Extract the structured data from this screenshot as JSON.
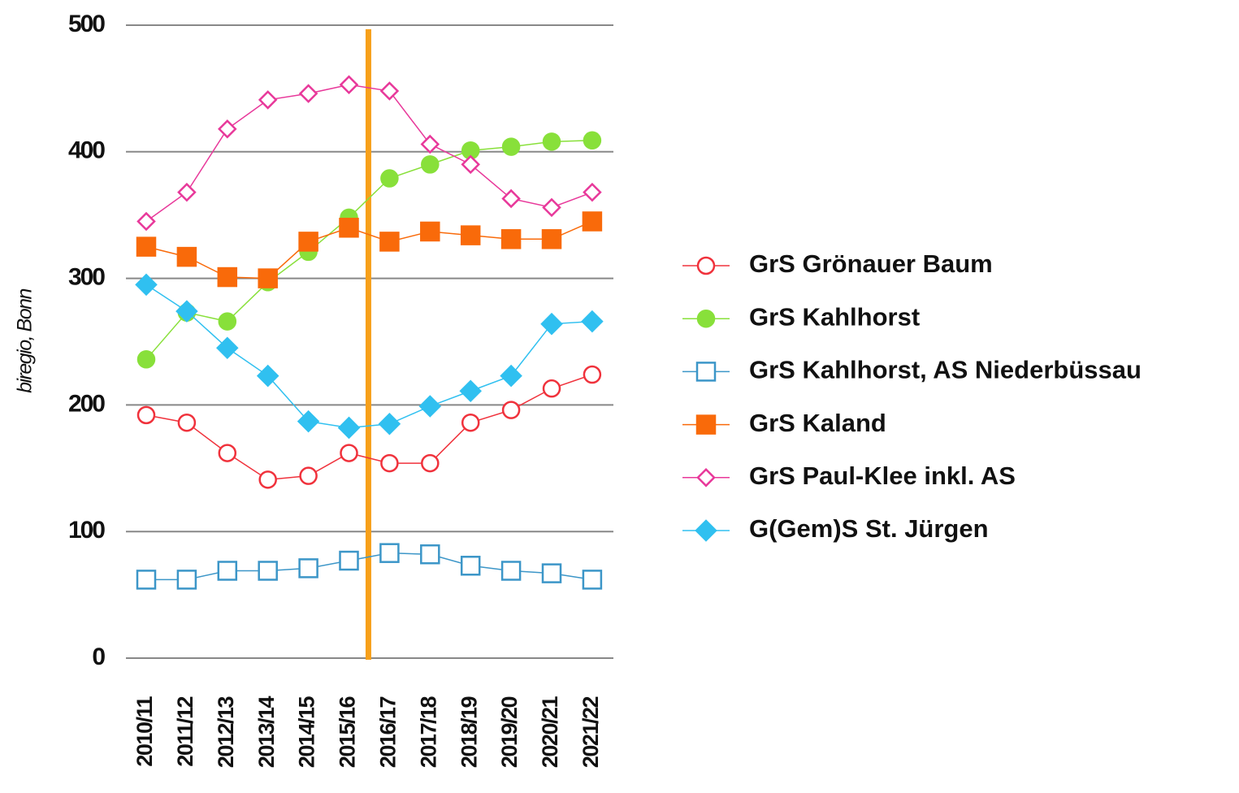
{
  "chart_data": {
    "type": "line",
    "y_label": "biregio, Bonn",
    "categories": [
      "2010/11",
      "2011/12",
      "2012/13",
      "2013/14",
      "2014/15",
      "2015/16",
      "2016/17",
      "2017/18",
      "2018/19",
      "2019/20",
      "2020/21",
      "2021/22"
    ],
    "ylim": [
      0,
      500
    ],
    "yticks": [
      0,
      100,
      200,
      300,
      400,
      500
    ],
    "grid": true,
    "series": [
      {
        "name": "GrS Grönauer Baum",
        "color": "#f0323c",
        "marker": "circle",
        "filled": false,
        "values": [
          192,
          186,
          162,
          141,
          144,
          162,
          154,
          154,
          186,
          196,
          213,
          224
        ]
      },
      {
        "name": "GrS Kahlhorst",
        "color": "#88e03a",
        "marker": "circle",
        "filled": true,
        "values": [
          236,
          273,
          266,
          297,
          321,
          348,
          379,
          390,
          401,
          404,
          408,
          409
        ]
      },
      {
        "name": "GrS Kahlhorst, AS Niederbüssau",
        "color": "#3c96c8",
        "marker": "square",
        "filled": false,
        "values": [
          62,
          62,
          69,
          69,
          71,
          77,
          83,
          82,
          73,
          69,
          67,
          62
        ]
      },
      {
        "name": "GrS Kaland",
        "color": "#f96a0a",
        "marker": "square",
        "filled": true,
        "values": [
          325,
          317,
          301,
          300,
          329,
          340,
          329,
          337,
          334,
          331,
          331,
          345
        ]
      },
      {
        "name": "GrS Paul-Klee inkl. AS",
        "color": "#e8389a",
        "marker": "diamond",
        "filled": false,
        "values": [
          345,
          368,
          418,
          441,
          446,
          453,
          448,
          406,
          390,
          363,
          356,
          368
        ]
      },
      {
        "name": "G(Gem)S St. Jürgen",
        "color": "#30c0f0",
        "marker": "diamond",
        "filled": true,
        "values": [
          295,
          274,
          245,
          223,
          187,
          182,
          185,
          199,
          211,
          223,
          264,
          266
        ]
      }
    ]
  }
}
